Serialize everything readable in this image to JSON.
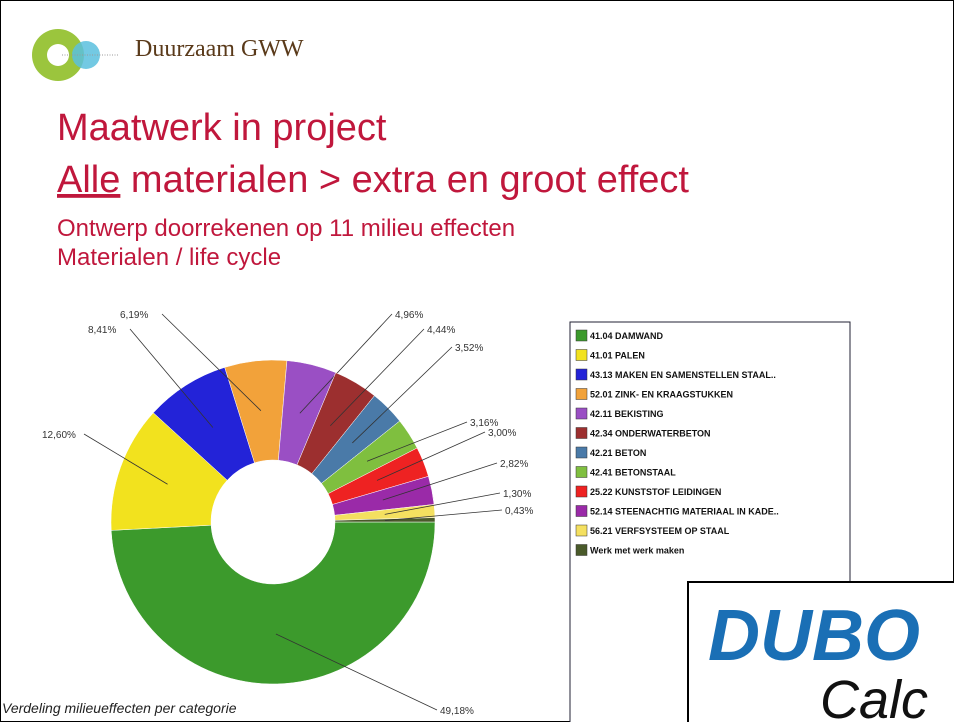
{
  "header": {
    "brand": "Duurzaam GWW"
  },
  "title": {
    "line1": "Maatwerk in project",
    "line2_underlined": "Alle",
    "line2_rest": " materialen > extra en groot effect"
  },
  "subtitle": {
    "line1": "Ontwerp doorrekenen op 11 milieu effecten",
    "line2": "Materialen / life cycle"
  },
  "logo": {
    "top": "DUBO",
    "bottom": "Calc"
  },
  "chart_data": {
    "type": "donut",
    "caption": "Verdeling milieueffecten per categorie",
    "categories": [
      "41.04 DAMWAND",
      "41.01 PALEN",
      "43.13 MAKEN EN SAMENSTELLEN STAAL..",
      "52.01 ZINK- EN KRAAGSTUKKEN",
      "42.11 BEKISTING",
      "42.34 ONDERWATERBETON",
      "42.21 BETON",
      "42.41 BETONSTAAL",
      "25.22 KUNSTSTOF LEIDINGEN",
      "52.14 STEENACHTIG MATERIAAL IN KADE..",
      "56.21 VERFSYSTEEM OP STAAL",
      "Werk met werk maken"
    ],
    "values": [
      49.18,
      12.6,
      8.41,
      6.19,
      4.96,
      4.44,
      3.52,
      3.16,
      3.0,
      2.82,
      1.3,
      0.43
    ],
    "value_labels": [
      "49,18%",
      "12,60%",
      "8,41%",
      "6,19%",
      "4,96%",
      "4,44%",
      "3,52%",
      "3,16%",
      "3,00%",
      "2,82%",
      "1,30%",
      "0,43%"
    ],
    "colors": [
      "#3c9a2c",
      "#f2e21e",
      "#2323d8",
      "#f2a23a",
      "#9a4fc4",
      "#9c2f2f",
      "#4a7aa8",
      "#7fbf3f",
      "#ee2222",
      "#9a2aa8",
      "#f4e060",
      "#4a5a2a"
    ]
  }
}
